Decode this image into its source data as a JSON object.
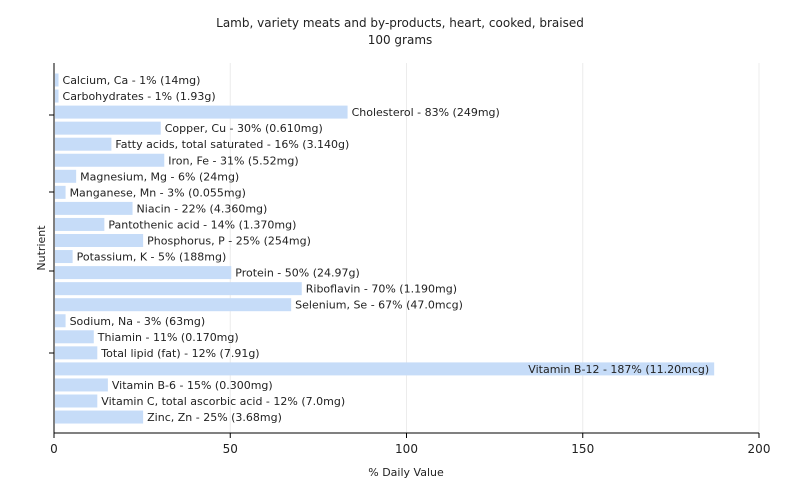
{
  "chart_data": {
    "type": "bar",
    "orientation": "horizontal",
    "title": "Lamb, variety meats and by-products, heart, cooked, braised",
    "subtitle": "100 grams",
    "xlabel": "% Daily Value",
    "ylabel": "Nutrient",
    "xlim": [
      0,
      200
    ],
    "xticks": [
      0,
      50,
      100,
      150,
      200
    ],
    "grid": true,
    "bar_color": "#c6dcf8",
    "categories": [
      "Calcium, Ca",
      "Carbohydrates",
      "Cholesterol",
      "Copper, Cu",
      "Fatty acids, total saturated",
      "Iron, Fe",
      "Magnesium, Mg",
      "Manganese, Mn",
      "Niacin",
      "Pantothenic acid",
      "Phosphorus, P",
      "Potassium, K",
      "Protein",
      "Riboflavin",
      "Selenium, Se",
      "Sodium, Na",
      "Thiamin",
      "Total lipid (fat)",
      "Vitamin B-12",
      "Vitamin B-6",
      "Vitamin C, total ascorbic acid",
      "Zinc, Zn"
    ],
    "values": [
      1,
      1,
      83,
      30,
      16,
      31,
      6,
      3,
      22,
      14,
      25,
      5,
      50,
      70,
      67,
      3,
      11,
      12,
      187,
      15,
      12,
      25
    ],
    "labels": [
      "Calcium, Ca - 1% (14mg)",
      "Carbohydrates - 1% (1.93g)",
      "Cholesterol - 83% (249mg)",
      "Copper, Cu - 30% (0.610mg)",
      "Fatty acids, total saturated - 16% (3.140g)",
      "Iron, Fe - 31% (5.52mg)",
      "Magnesium, Mg - 6% (24mg)",
      "Manganese, Mn - 3% (0.055mg)",
      "Niacin - 22% (4.360mg)",
      "Pantothenic acid - 14% (1.370mg)",
      "Phosphorus, P - 25% (254mg)",
      "Potassium, K - 5% (188mg)",
      "Protein - 50% (24.97g)",
      "Riboflavin - 70% (1.190mg)",
      "Selenium, Se - 67% (47.0mcg)",
      "Sodium, Na - 3% (63mg)",
      "Thiamin - 11% (0.170mg)",
      "Total lipid (fat) - 12% (7.91g)",
      "Vitamin B-12 - 187% (11.20mcg)",
      "Vitamin B-6 - 15% (0.300mg)",
      "Vitamin C, total ascorbic acid - 12% (7.0mg)",
      "Zinc, Zn - 25% (3.68mg)"
    ]
  }
}
